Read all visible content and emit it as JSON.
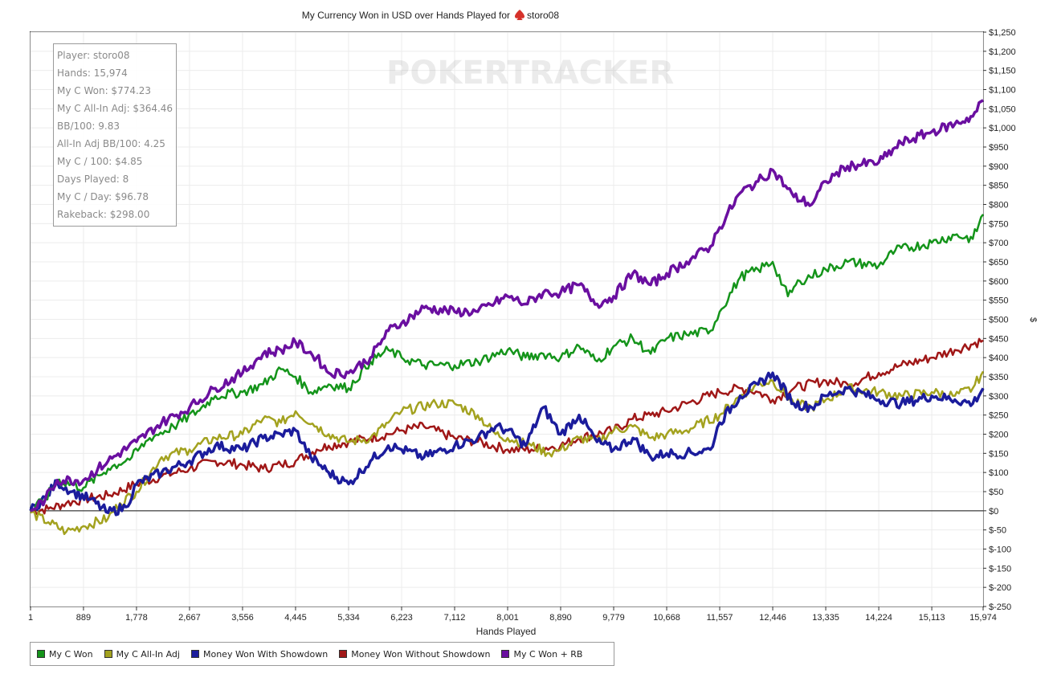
{
  "title": "My Currency Won in USD over Hands Played for",
  "player_name": "storo08",
  "watermark": "POKERTRACKER",
  "stats": [
    "Player: storo08",
    "Hands: 15,974",
    "My C Won: $774.23",
    "My C All-In Adj: $364.46",
    "BB/100: 9.83",
    "All-In Adj BB/100: 4.25",
    "My C / 100: $4.85",
    "Days Played: 8",
    "My C / Day: $96.78",
    "Rakeback: $298.00"
  ],
  "chart_data": {
    "type": "line",
    "xlabel": "Hands Played",
    "ylabel": "$",
    "xlim": [
      1,
      15974
    ],
    "ylim": [
      -250,
      1250
    ],
    "x_ticks": [
      1,
      889,
      1778,
      2667,
      3556,
      4445,
      5334,
      6223,
      7112,
      8001,
      8890,
      9779,
      10668,
      11557,
      12446,
      13335,
      14224,
      15113,
      15974
    ],
    "x_tick_labels": [
      "1",
      "889",
      "1,778",
      "2,667",
      "3,556",
      "4,445",
      "5,334",
      "6,223",
      "7,112",
      "8,001",
      "8,890",
      "9,779",
      "10,668",
      "11,557",
      "12,446",
      "13,335",
      "14,224",
      "15,113",
      "15,974"
    ],
    "y_ticks": [
      1250,
      1200,
      1150,
      1100,
      1050,
      1000,
      950,
      900,
      850,
      800,
      750,
      700,
      650,
      600,
      550,
      500,
      450,
      400,
      350,
      300,
      250,
      200,
      150,
      100,
      50,
      0,
      -50,
      -100,
      -150,
      -200,
      -250
    ],
    "y_tick_labels": [
      "$1,250",
      "$1,200",
      "$1,150",
      "$1,100",
      "$1,050",
      "$1,000",
      "$950",
      "$900",
      "$850",
      "$800",
      "$750",
      "$700",
      "$650",
      "$600",
      "$550",
      "$500",
      "$450",
      "$400",
      "$350",
      "$300",
      "$250",
      "$200",
      "$150",
      "$100",
      "$50",
      "$0",
      "$-50",
      "$-100",
      "$-150",
      "$-200",
      "$-250"
    ],
    "grid": true,
    "legend_position": "bottom-left",
    "series": [
      {
        "name": "My C Won",
        "color": "#14941a",
        "stroke_width": 2.5,
        "points": [
          [
            1,
            0
          ],
          [
            250,
            30
          ],
          [
            450,
            80
          ],
          [
            889,
            60
          ],
          [
            1300,
            110
          ],
          [
            1700,
            140
          ],
          [
            2000,
            190
          ],
          [
            2400,
            220
          ],
          [
            2800,
            260
          ],
          [
            3100,
            300
          ],
          [
            3556,
            310
          ],
          [
            3900,
            330
          ],
          [
            4200,
            370
          ],
          [
            4445,
            350
          ],
          [
            4700,
            310
          ],
          [
            5000,
            330
          ],
          [
            5334,
            320
          ],
          [
            5700,
            390
          ],
          [
            6000,
            420
          ],
          [
            6223,
            400
          ],
          [
            6600,
            380
          ],
          [
            7112,
            380
          ],
          [
            7500,
            390
          ],
          [
            8001,
            420
          ],
          [
            8300,
            400
          ],
          [
            8600,
            410
          ],
          [
            8890,
            400
          ],
          [
            9200,
            430
          ],
          [
            9500,
            390
          ],
          [
            9779,
            430
          ],
          [
            10100,
            450
          ],
          [
            10400,
            410
          ],
          [
            10668,
            450
          ],
          [
            11000,
            460
          ],
          [
            11400,
            470
          ],
          [
            11557,
            520
          ],
          [
            11900,
            610
          ],
          [
            12200,
            630
          ],
          [
            12446,
            650
          ],
          [
            12700,
            560
          ],
          [
            12900,
            600
          ],
          [
            13335,
            630
          ],
          [
            13700,
            650
          ],
          [
            14224,
            640
          ],
          [
            14500,
            680
          ],
          [
            15113,
            700
          ],
          [
            15500,
            720
          ],
          [
            15800,
            710
          ],
          [
            15974,
            774
          ]
        ]
      },
      {
        "name": "My C All-In Adj",
        "color": "#a3a21f",
        "stroke_width": 2.5,
        "points": [
          [
            1,
            -5
          ],
          [
            300,
            -30
          ],
          [
            600,
            -55
          ],
          [
            889,
            -40
          ],
          [
            1300,
            -20
          ],
          [
            1500,
            20
          ],
          [
            1778,
            50
          ],
          [
            2200,
            140
          ],
          [
            2667,
            160
          ],
          [
            3100,
            190
          ],
          [
            3556,
            200
          ],
          [
            3900,
            240
          ],
          [
            4200,
            230
          ],
          [
            4445,
            260
          ],
          [
            4800,
            220
          ],
          [
            5000,
            200
          ],
          [
            5334,
            180
          ],
          [
            5700,
            190
          ],
          [
            6000,
            230
          ],
          [
            6223,
            260
          ],
          [
            6800,
            280
          ],
          [
            7112,
            280
          ],
          [
            7500,
            250
          ],
          [
            7800,
            200
          ],
          [
            8001,
            190
          ],
          [
            8400,
            170
          ],
          [
            8700,
            150
          ],
          [
            8890,
            160
          ],
          [
            9200,
            190
          ],
          [
            9500,
            180
          ],
          [
            9779,
            210
          ],
          [
            10100,
            220
          ],
          [
            10400,
            190
          ],
          [
            10668,
            200
          ],
          [
            11000,
            210
          ],
          [
            11557,
            250
          ],
          [
            11900,
            300
          ],
          [
            12200,
            330
          ],
          [
            12446,
            340
          ],
          [
            12800,
            280
          ],
          [
            13100,
            270
          ],
          [
            13335,
            290
          ],
          [
            13700,
            320
          ],
          [
            14224,
            310
          ],
          [
            14600,
            300
          ],
          [
            15113,
            310
          ],
          [
            15500,
            300
          ],
          [
            15800,
            320
          ],
          [
            15974,
            364
          ]
        ]
      },
      {
        "name": "Money Won With Showdown",
        "color": "#1b1c9c",
        "stroke_width": 3.5,
        "points": [
          [
            1,
            0
          ],
          [
            250,
            35
          ],
          [
            450,
            75
          ],
          [
            700,
            50
          ],
          [
            1000,
            30
          ],
          [
            1300,
            -5
          ],
          [
            1600,
            10
          ],
          [
            1778,
            70
          ],
          [
            2200,
            100
          ],
          [
            2667,
            130
          ],
          [
            3100,
            170
          ],
          [
            3556,
            160
          ],
          [
            3900,
            190
          ],
          [
            4200,
            200
          ],
          [
            4445,
            210
          ],
          [
            4700,
            140
          ],
          [
            5000,
            100
          ],
          [
            5334,
            70
          ],
          [
            5700,
            130
          ],
          [
            6000,
            170
          ],
          [
            6223,
            160
          ],
          [
            6600,
            140
          ],
          [
            7112,
            170
          ],
          [
            7500,
            190
          ],
          [
            7800,
            220
          ],
          [
            8001,
            210
          ],
          [
            8300,
            170
          ],
          [
            8600,
            270
          ],
          [
            8890,
            200
          ],
          [
            9200,
            250
          ],
          [
            9500,
            180
          ],
          [
            9779,
            160
          ],
          [
            10100,
            190
          ],
          [
            10400,
            140
          ],
          [
            10668,
            150
          ],
          [
            11000,
            150
          ],
          [
            11400,
            160
          ],
          [
            11557,
            230
          ],
          [
            11900,
            300
          ],
          [
            12200,
            330
          ],
          [
            12446,
            360
          ],
          [
            12800,
            280
          ],
          [
            13100,
            270
          ],
          [
            13335,
            300
          ],
          [
            13700,
            320
          ],
          [
            14224,
            290
          ],
          [
            14600,
            280
          ],
          [
            15113,
            300
          ],
          [
            15500,
            290
          ],
          [
            15800,
            280
          ],
          [
            15974,
            320
          ]
        ]
      },
      {
        "name": "Money Won Without Showdown",
        "color": "#a01717",
        "stroke_width": 2.5,
        "points": [
          [
            1,
            0
          ],
          [
            300,
            5
          ],
          [
            600,
            20
          ],
          [
            889,
            30
          ],
          [
            1300,
            40
          ],
          [
            1778,
            70
          ],
          [
            2200,
            90
          ],
          [
            2667,
            110
          ],
          [
            3100,
            130
          ],
          [
            3556,
            120
          ],
          [
            3900,
            110
          ],
          [
            4200,
            120
          ],
          [
            4445,
            130
          ],
          [
            4800,
            160
          ],
          [
            5000,
            170
          ],
          [
            5334,
            180
          ],
          [
            5700,
            190
          ],
          [
            6000,
            200
          ],
          [
            6223,
            210
          ],
          [
            6600,
            220
          ],
          [
            7112,
            190
          ],
          [
            7500,
            180
          ],
          [
            8001,
            160
          ],
          [
            8400,
            160
          ],
          [
            8890,
            170
          ],
          [
            9200,
            190
          ],
          [
            9779,
            210
          ],
          [
            10100,
            240
          ],
          [
            10400,
            250
          ],
          [
            10668,
            260
          ],
          [
            11000,
            280
          ],
          [
            11557,
            310
          ],
          [
            11900,
            320
          ],
          [
            12200,
            310
          ],
          [
            12446,
            290
          ],
          [
            12800,
            320
          ],
          [
            13335,
            340
          ],
          [
            13700,
            330
          ],
          [
            14224,
            360
          ],
          [
            14600,
            380
          ],
          [
            15113,
            400
          ],
          [
            15500,
            420
          ],
          [
            15974,
            445
          ]
        ]
      },
      {
        "name": "My C Won + RB",
        "color": "#6a0fa0",
        "stroke_width": 3.5,
        "points": [
          [
            1,
            0
          ],
          [
            250,
            30
          ],
          [
            450,
            80
          ],
          [
            889,
            80
          ],
          [
            1300,
            130
          ],
          [
            1778,
            180
          ],
          [
            2200,
            230
          ],
          [
            2667,
            270
          ],
          [
            3100,
            320
          ],
          [
            3556,
            360
          ],
          [
            3900,
            410
          ],
          [
            4200,
            420
          ],
          [
            4445,
            440
          ],
          [
            4800,
            400
          ],
          [
            5000,
            360
          ],
          [
            5334,
            360
          ],
          [
            5700,
            400
          ],
          [
            6000,
            470
          ],
          [
            6223,
            490
          ],
          [
            6600,
            530
          ],
          [
            7112,
            520
          ],
          [
            7500,
            520
          ],
          [
            8001,
            560
          ],
          [
            8300,
            540
          ],
          [
            8600,
            570
          ],
          [
            8890,
            570
          ],
          [
            9200,
            590
          ],
          [
            9500,
            540
          ],
          [
            9779,
            560
          ],
          [
            10100,
            620
          ],
          [
            10400,
            590
          ],
          [
            10668,
            620
          ],
          [
            11000,
            650
          ],
          [
            11400,
            690
          ],
          [
            11557,
            740
          ],
          [
            11900,
            830
          ],
          [
            12200,
            860
          ],
          [
            12446,
            890
          ],
          [
            12800,
            820
          ],
          [
            13100,
            800
          ],
          [
            13335,
            860
          ],
          [
            13700,
            900
          ],
          [
            14224,
            910
          ],
          [
            14600,
            960
          ],
          [
            15113,
            990
          ],
          [
            15500,
            1010
          ],
          [
            15800,
            1030
          ],
          [
            15974,
            1072
          ]
        ]
      }
    ]
  }
}
